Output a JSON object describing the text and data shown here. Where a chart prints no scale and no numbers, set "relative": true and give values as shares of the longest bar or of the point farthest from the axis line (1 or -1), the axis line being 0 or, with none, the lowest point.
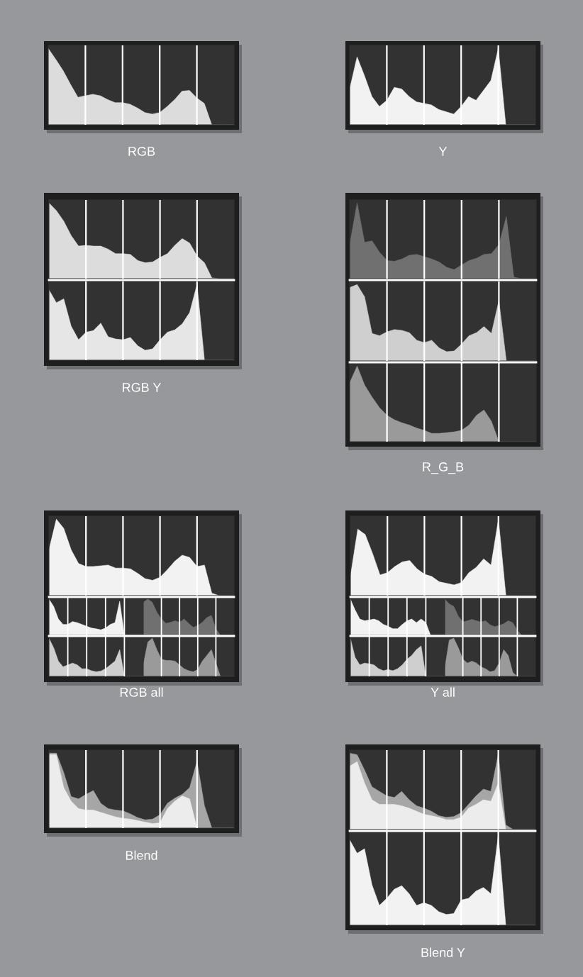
{
  "chart_data": [
    {
      "type": "area",
      "relative": true,
      "xlabel": "RGB",
      "grid": "x",
      "categories": [
        null,
        null,
        null,
        null,
        null,
        null,
        null,
        null,
        null,
        null,
        null,
        null,
        null,
        null,
        null,
        null,
        null,
        null,
        null,
        null,
        null,
        null,
        null,
        null,
        null,
        null
      ],
      "series": [
        {
          "color": "#dcdcdc",
          "values": [
            1.0,
            0.86,
            0.71,
            0.53,
            0.36,
            0.38,
            0.4,
            0.38,
            0.33,
            0.29,
            0.29,
            0.27,
            0.22,
            0.16,
            0.14,
            0.16,
            0.24,
            0.33,
            0.44,
            0.45,
            0.35,
            0.28,
            0,
            0,
            0,
            0
          ]
        }
      ]
    },
    {
      "type": "area",
      "relative": true,
      "xlabel": "Y",
      "grid": "x",
      "categories": [
        null,
        null,
        null,
        null,
        null,
        null,
        null,
        null,
        null,
        null,
        null,
        null,
        null,
        null,
        null,
        null,
        null,
        null,
        null,
        null,
        null,
        null,
        null,
        null,
        null,
        null
      ],
      "series": [
        {
          "color": "#f2f2f2",
          "values": [
            0.47,
            0.89,
            0.64,
            0.37,
            0.24,
            0.32,
            0.49,
            0.47,
            0.37,
            0.3,
            0.28,
            0.26,
            0.2,
            0.17,
            0.14,
            0.24,
            0.37,
            0.32,
            0.45,
            0.58,
            1.0,
            0,
            0,
            0,
            0,
            0
          ]
        }
      ]
    },
    {
      "type": "area",
      "relative": true,
      "xlabel": "RGB Y",
      "grid": "x",
      "categories": [
        null,
        null,
        null,
        null,
        null,
        null,
        null,
        null,
        null,
        null,
        null,
        null,
        null,
        null,
        null,
        null,
        null,
        null,
        null,
        null,
        null,
        null,
        null,
        null,
        null,
        null
      ],
      "series": [
        {
          "color": "#dcdcdc",
          "values": [
            1.0,
            0.9,
            0.76,
            0.57,
            0.43,
            0.44,
            0.43,
            0.43,
            0.39,
            0.33,
            0.33,
            0.32,
            0.24,
            0.21,
            0.22,
            0.28,
            0.33,
            0.44,
            0.53,
            0.47,
            0.3,
            0.21,
            0.01,
            0,
            0,
            0
          ]
        }
      ]
    },
    {
      "type": "area",
      "relative": true,
      "grid": "x",
      "categories": [
        null,
        null,
        null,
        null,
        null,
        null,
        null,
        null,
        null,
        null,
        null,
        null,
        null,
        null,
        null,
        null,
        null,
        null,
        null,
        null,
        null,
        null,
        null,
        null,
        null,
        null
      ],
      "series": [
        {
          "color": "#e6e6e6",
          "values": [
            0.93,
            0.76,
            0.81,
            0.45,
            0.27,
            0.37,
            0.39,
            0.49,
            0.31,
            0.28,
            0.27,
            0.3,
            0.19,
            0.13,
            0.15,
            0.27,
            0.37,
            0.4,
            0.48,
            0.63,
            1.0,
            0,
            0,
            0,
            0,
            0
          ]
        }
      ]
    },
    {
      "type": "area",
      "relative": true,
      "xlabel": "R_G_B",
      "grid": "x",
      "categories": [
        null,
        null,
        null,
        null,
        null,
        null,
        null,
        null,
        null,
        null,
        null,
        null,
        null,
        null,
        null,
        null,
        null,
        null,
        null,
        null,
        null,
        null,
        null,
        null,
        null,
        null
      ],
      "series": [
        {
          "color": "#707070",
          "values": [
            0.45,
            1.0,
            0.48,
            0.5,
            0.35,
            0.24,
            0.23,
            0.26,
            0.31,
            0.32,
            0.29,
            0.26,
            0.22,
            0.15,
            0.12,
            0.18,
            0.24,
            0.27,
            0.32,
            0.33,
            0.45,
            0.82,
            0.02,
            0,
            0,
            0
          ]
        }
      ]
    },
    {
      "type": "area",
      "relative": true,
      "grid": "x",
      "categories": [
        null,
        null,
        null,
        null,
        null,
        null,
        null,
        null,
        null,
        null,
        null,
        null,
        null,
        null,
        null,
        null,
        null,
        null,
        null,
        null,
        null,
        null,
        null,
        null,
        null,
        null
      ],
      "series": [
        {
          "color": "#cfcfcf",
          "values": [
            0.96,
            1.0,
            0.84,
            0.36,
            0.33,
            0.38,
            0.41,
            0.4,
            0.37,
            0.27,
            0.24,
            0.27,
            0.17,
            0.12,
            0.13,
            0.22,
            0.33,
            0.37,
            0.45,
            0.36,
            0.79,
            0,
            0,
            0,
            0,
            0
          ]
        }
      ]
    },
    {
      "type": "area",
      "relative": true,
      "grid": "x",
      "categories": [
        null,
        null,
        null,
        null,
        null,
        null,
        null,
        null,
        null,
        null,
        null,
        null,
        null,
        null,
        null,
        null,
        null,
        null,
        null,
        null,
        null,
        null,
        null,
        null,
        null,
        null
      ],
      "series": [
        {
          "color": "#9a9a9a",
          "values": [
            0.78,
            1.0,
            0.75,
            0.59,
            0.45,
            0.35,
            0.29,
            0.25,
            0.22,
            0.18,
            0.15,
            0.11,
            0.11,
            0.12,
            0.13,
            0.15,
            0.22,
            0.35,
            0.42,
            0.27,
            0,
            0,
            0,
            0,
            0,
            0
          ]
        }
      ]
    },
    {
      "type": "area",
      "relative": true,
      "xlabel": "RGB all",
      "grid": "x",
      "categories": [
        null,
        null,
        null,
        null,
        null,
        null,
        null,
        null,
        null,
        null,
        null,
        null,
        null,
        null,
        null,
        null,
        null,
        null,
        null,
        null,
        null,
        null,
        null,
        null,
        null,
        null
      ],
      "series": [
        {
          "color": "#f2f2f2",
          "values": [
            0.6,
            1.0,
            0.88,
            0.6,
            0.42,
            0.38,
            0.38,
            0.39,
            0.4,
            0.36,
            0.36,
            0.35,
            0.29,
            0.22,
            0.2,
            0.24,
            0.34,
            0.45,
            0.53,
            0.5,
            0.38,
            0.4,
            0.03,
            0,
            0,
            0
          ]
        }
      ]
    },
    {
      "type": "area",
      "relative": true,
      "grid": "x",
      "categories": [
        null,
        null,
        null,
        null,
        null,
        null,
        null,
        null,
        null,
        null,
        null,
        null,
        null,
        null,
        null,
        null,
        null,
        null,
        null,
        null,
        null
      ],
      "series": [
        {
          "color": "#f2f2f2",
          "values": [
            1.0,
            0.8,
            0.45,
            0.3,
            0.3,
            0.38,
            0.35,
            0.3,
            0.25,
            0.2,
            0.18,
            0.15,
            0.2,
            0.3,
            0.35,
            0.94,
            0,
            0,
            0,
            0,
            0
          ]
        }
      ]
    },
    {
      "type": "area",
      "relative": true,
      "grid": "x",
      "categories": [
        null,
        null,
        null,
        null,
        null,
        null,
        null,
        null,
        null,
        null,
        null,
        null,
        null,
        null,
        null,
        null,
        null,
        null,
        null,
        null,
        null
      ],
      "series": [
        {
          "color": "#707070",
          "values": [
            0.91,
            1.0,
            0.91,
            0.64,
            0.45,
            0.33,
            0.36,
            0.4,
            0.36,
            0.45,
            0.33,
            0.22,
            0.27,
            0.36,
            0.49,
            0.55,
            0.18,
            0,
            0,
            0,
            0
          ]
        }
      ]
    },
    {
      "type": "area",
      "relative": true,
      "grid": "x",
      "categories": [
        null,
        null,
        null,
        null,
        null,
        null,
        null,
        null,
        null,
        null,
        null,
        null,
        null,
        null,
        null,
        null,
        null,
        null,
        null,
        null,
        null
      ],
      "series": [
        {
          "color": "#cfcfcf",
          "values": [
            1.0,
            0.75,
            0.4,
            0.25,
            0.3,
            0.35,
            0.3,
            0.2,
            0.2,
            0.15,
            0.12,
            0.14,
            0.2,
            0.3,
            0.4,
            0.7,
            0,
            0,
            0,
            0,
            0
          ]
        }
      ]
    },
    {
      "type": "area",
      "relative": true,
      "grid": "x",
      "categories": [
        null,
        null,
        null,
        null,
        null,
        null,
        null,
        null,
        null,
        null,
        null,
        null,
        null,
        null,
        null,
        null,
        null,
        null,
        null,
        null,
        null
      ],
      "series": [
        {
          "color": "#9a9a9a",
          "values": [
            0.3,
            0.9,
            1.0,
            0.7,
            0.45,
            0.42,
            0.42,
            0.4,
            0.3,
            0.2,
            0.15,
            0.12,
            0.18,
            0.4,
            0.55,
            0.7,
            0.35,
            0,
            0,
            0,
            0
          ]
        }
      ]
    },
    {
      "type": "area",
      "relative": true,
      "xlabel": "Y all",
      "grid": "x",
      "categories": [
        null,
        null,
        null,
        null,
        null,
        null,
        null,
        null,
        null,
        null,
        null,
        null,
        null,
        null,
        null,
        null,
        null,
        null,
        null,
        null,
        null,
        null,
        null,
        null,
        null,
        null
      ],
      "series": [
        {
          "color": "#f2f2f2",
          "values": [
            0.25,
            0.87,
            0.8,
            0.55,
            0.27,
            0.3,
            0.38,
            0.44,
            0.46,
            0.35,
            0.28,
            0.25,
            0.18,
            0.16,
            0.14,
            0.17,
            0.3,
            0.37,
            0.48,
            0.4,
            1.0,
            0,
            0,
            0,
            0,
            0
          ]
        }
      ]
    },
    {
      "type": "area",
      "relative": true,
      "grid": "x",
      "categories": [
        null,
        null,
        null,
        null,
        null,
        null,
        null,
        null,
        null,
        null,
        null,
        null,
        null,
        null,
        null,
        null,
        null,
        null,
        null,
        null,
        null
      ],
      "series": [
        {
          "color": "#f2f2f2",
          "values": [
            1.0,
            0.7,
            0.45,
            0.4,
            0.42,
            0.45,
            0.4,
            0.3,
            0.25,
            0.18,
            0.18,
            0.3,
            0.4,
            0.45,
            0.35,
            0.45,
            0.35,
            0,
            0,
            0,
            0
          ]
        }
      ]
    },
    {
      "type": "area",
      "relative": true,
      "grid": "x",
      "categories": [
        null,
        null,
        null,
        null,
        null,
        null,
        null,
        null,
        null,
        null,
        null,
        null,
        null,
        null,
        null,
        null,
        null,
        null,
        null,
        null,
        null
      ],
      "series": [
        {
          "color": "#707070",
          "values": [
            1.0,
            0.87,
            0.8,
            0.53,
            0.37,
            0.4,
            0.44,
            0.4,
            0.37,
            0.4,
            0.29,
            0.24,
            0.27,
            0.32,
            0.4,
            0.35,
            0.13,
            0,
            0,
            0,
            0
          ]
        }
      ]
    },
    {
      "type": "area",
      "relative": true,
      "grid": "x",
      "categories": [
        null,
        null,
        null,
        null,
        null,
        null,
        null,
        null,
        null,
        null,
        null,
        null,
        null,
        null,
        null,
        null,
        null,
        null,
        null,
        null,
        null
      ],
      "series": [
        {
          "color": "#cfcfcf",
          "values": [
            1.0,
            0.5,
            0.3,
            0.35,
            0.33,
            0.3,
            0.2,
            0.15,
            0.18,
            0.15,
            0.2,
            0.3,
            0.45,
            0.55,
            0.7,
            0.8,
            0,
            0,
            0,
            0,
            0
          ]
        }
      ]
    },
    {
      "type": "area",
      "relative": true,
      "grid": "x",
      "categories": [
        null,
        null,
        null,
        null,
        null,
        null,
        null,
        null,
        null,
        null,
        null,
        null,
        null,
        null,
        null,
        null,
        null,
        null,
        null,
        null,
        null
      ],
      "series": [
        {
          "color": "#9a9a9a",
          "values": [
            0.2,
            0.95,
            1.0,
            0.75,
            0.45,
            0.35,
            0.4,
            0.35,
            0.25,
            0.2,
            0.12,
            0.15,
            0.35,
            0.7,
            0.55,
            0.1,
            0,
            0,
            0,
            0,
            0
          ]
        }
      ]
    },
    {
      "type": "area",
      "relative": true,
      "xlabel": "Blend",
      "grid": "x",
      "categories": [
        null,
        null,
        null,
        null,
        null,
        null,
        null,
        null,
        null,
        null,
        null,
        null,
        null,
        null,
        null,
        null,
        null,
        null,
        null,
        null,
        null,
        null,
        null,
        null,
        null,
        null
      ],
      "series": [
        {
          "color": "#a6a6a6",
          "values": [
            1.0,
            1.0,
            0.74,
            0.42,
            0.39,
            0.45,
            0.5,
            0.33,
            0.26,
            0.24,
            0.23,
            0.19,
            0.14,
            0.11,
            0.12,
            0.18,
            0.33,
            0.4,
            0.45,
            0.54,
            0.89,
            0.3,
            0,
            0,
            0,
            0
          ]
        },
        {
          "color": "#ececec",
          "values": [
            0.98,
            0.98,
            0.54,
            0.36,
            0.26,
            0.24,
            0.24,
            0.21,
            0.18,
            0.15,
            0.13,
            0.12,
            0.1,
            0.08,
            0.06,
            0.07,
            0.26,
            0.36,
            0.43,
            0.39,
            0,
            0,
            0,
            0,
            0,
            0
          ]
        }
      ]
    },
    {
      "type": "area",
      "relative": true,
      "xlabel": "Blend Y",
      "grid": "x",
      "categories": [
        null,
        null,
        null,
        null,
        null,
        null,
        null,
        null,
        null,
        null,
        null,
        null,
        null,
        null,
        null,
        null,
        null,
        null,
        null,
        null,
        null,
        null,
        null,
        null,
        null,
        null
      ],
      "series": [
        {
          "color": "#a6a6a6",
          "values": [
            1.0,
            0.98,
            0.78,
            0.56,
            0.5,
            0.44,
            0.42,
            0.5,
            0.39,
            0.31,
            0.28,
            0.24,
            0.18,
            0.16,
            0.17,
            0.22,
            0.33,
            0.44,
            0.53,
            0.5,
            0.99,
            0.06,
            0,
            0,
            0,
            0
          ]
        },
        {
          "color": "#ececec",
          "values": [
            0.83,
            0.89,
            0.61,
            0.39,
            0.33,
            0.33,
            0.33,
            0.31,
            0.28,
            0.24,
            0.2,
            0.18,
            0.16,
            0.13,
            0.13,
            0.16,
            0.28,
            0.33,
            0.39,
            0.37,
            0.61,
            0,
            0,
            0,
            0,
            0
          ]
        }
      ]
    },
    {
      "type": "area",
      "relative": true,
      "grid": "x",
      "categories": [
        null,
        null,
        null,
        null,
        null,
        null,
        null,
        null,
        null,
        null,
        null,
        null,
        null,
        null,
        null,
        null,
        null,
        null,
        null,
        null,
        null,
        null,
        null,
        null,
        null,
        null
      ],
      "series": [
        {
          "color": "#f2f2f2",
          "values": [
            0.95,
            0.8,
            0.85,
            0.45,
            0.22,
            0.3,
            0.4,
            0.44,
            0.35,
            0.22,
            0.25,
            0.22,
            0.15,
            0.12,
            0.13,
            0.28,
            0.3,
            0.38,
            0.42,
            0.35,
            1.0,
            0,
            0,
            0,
            0,
            0
          ]
        }
      ]
    }
  ]
}
